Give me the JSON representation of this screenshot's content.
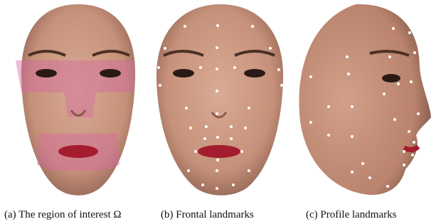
{
  "figure": {
    "panels": [
      {
        "caption": "(a) The region of interest Ω"
      },
      {
        "caption": "(b) Frontal landmarks"
      },
      {
        "caption": "(c) Profile landmarks"
      }
    ]
  }
}
